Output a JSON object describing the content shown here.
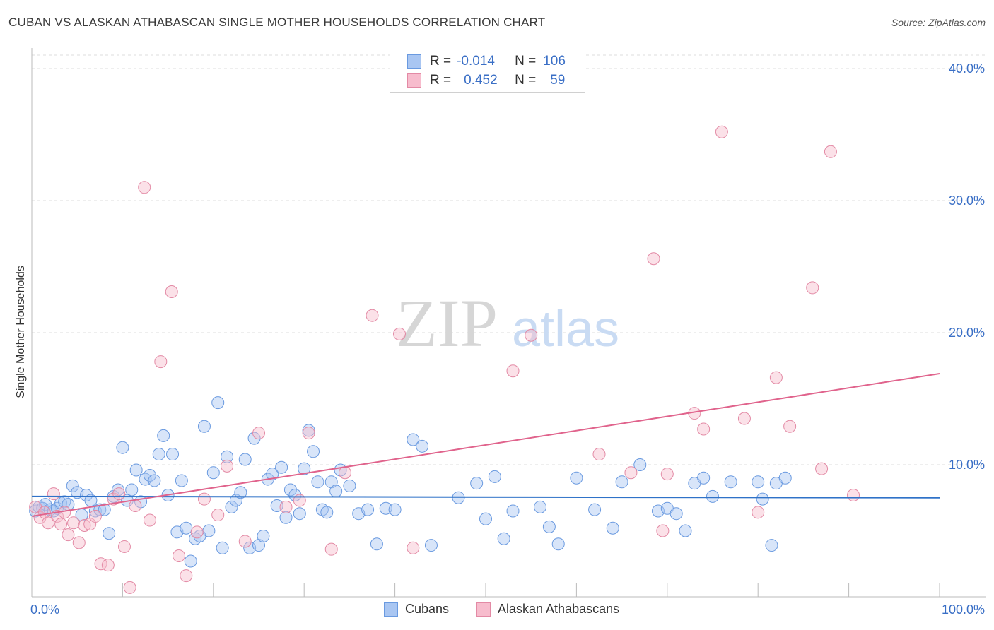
{
  "title": "CUBAN VS ALASKAN ATHABASCAN SINGLE MOTHER HOUSEHOLDS CORRELATION CHART",
  "source": "Source: ZipAtlas.com",
  "watermark": {
    "zip": "ZIP",
    "atlas": "atlas"
  },
  "legend": {
    "rows": [
      {
        "r_label": "R =",
        "r_value": "-0.014",
        "n_label": "N =",
        "n_value": "106",
        "color": "#a9c6f2",
        "border": "#6a9ae0"
      },
      {
        "r_label": "R =",
        "r_value": "0.452",
        "n_label": "N =",
        "n_value": "59",
        "color": "#f7bccd",
        "border": "#e38aa5"
      }
    ]
  },
  "bottom_legend": [
    "Cubans",
    "Alaskan Athabascans"
  ],
  "chart_data": {
    "type": "scatter",
    "xlabel": "",
    "ylabel": "Single Mother Households",
    "xlim": [
      0,
      100
    ],
    "ylim": [
      0,
      40
    ],
    "x_tick_labels": {
      "min": "0.0%",
      "max": "100.0%"
    },
    "y_ticks": [
      10,
      20,
      30,
      40
    ],
    "y_tick_labels": [
      "10.0%",
      "20.0%",
      "30.0%",
      "40.0%"
    ],
    "grid": "horizontal dashed",
    "legend_position": "top-center",
    "colors": {
      "Cubans": "#6a9ae0",
      "Alaskan Athabascans": "#e38aa5",
      "cubans_line": "#2f72c8",
      "alaskan_line": "#e0638c",
      "tick_text": "#3a6fc6"
    },
    "series": [
      {
        "name": "Cubans",
        "trend": {
          "x": [
            0,
            100
          ],
          "y": [
            7.6,
            7.5
          ]
        },
        "x": [
          0.4,
          0.8,
          1.2,
          1.5,
          2.0,
          2.4,
          2.8,
          3.2,
          3.6,
          4.0,
          4.5,
          5.0,
          5.5,
          6.0,
          6.5,
          7.0,
          7.5,
          8.0,
          8.5,
          9.0,
          9.5,
          10.0,
          10.5,
          11.0,
          11.5,
          12.0,
          12.5,
          13.0,
          13.5,
          14.0,
          14.5,
          15.0,
          15.5,
          16.0,
          16.5,
          17.0,
          17.5,
          18.0,
          18.5,
          19.0,
          19.5,
          20.0,
          20.5,
          21.0,
          21.5,
          22.0,
          22.5,
          23.0,
          23.5,
          24.0,
          24.5,
          25.0,
          25.5,
          26.0,
          26.5,
          27.0,
          27.5,
          28.0,
          28.5,
          29.0,
          29.5,
          30.0,
          30.5,
          31.0,
          31.5,
          32.0,
          32.5,
          33.0,
          33.5,
          34.0,
          35.0,
          36.0,
          37.0,
          38.0,
          39.0,
          40.0,
          42.0,
          43.0,
          44.0,
          47.0,
          49.0,
          50.0,
          51.0,
          52.0,
          53.0,
          56.0,
          57.0,
          58.0,
          60.0,
          62.0,
          64.0,
          65.0,
          67.0,
          69.0,
          70.0,
          71.0,
          72.0,
          73.0,
          74.0,
          75.0,
          77.0,
          80.0,
          80.5,
          81.5,
          82.0,
          83.0
        ],
        "y": [
          6.5,
          6.8,
          6.7,
          7.0,
          6.6,
          6.5,
          6.7,
          7.1,
          7.2,
          7.0,
          8.4,
          7.9,
          6.2,
          7.7,
          7.3,
          6.5,
          6.6,
          6.6,
          4.8,
          7.6,
          8.1,
          11.3,
          7.3,
          8.1,
          9.6,
          7.2,
          8.9,
          9.2,
          8.8,
          10.8,
          12.2,
          7.7,
          10.8,
          4.9,
          8.8,
          5.2,
          2.7,
          4.4,
          4.6,
          12.9,
          5.0,
          9.4,
          14.7,
          3.7,
          10.6,
          6.8,
          7.3,
          7.9,
          10.4,
          3.7,
          12.0,
          3.9,
          4.6,
          8.9,
          9.3,
          6.9,
          9.8,
          6.0,
          8.1,
          7.7,
          6.3,
          9.7,
          12.6,
          11.0,
          8.7,
          6.6,
          6.4,
          8.7,
          8.0,
          9.6,
          8.4,
          6.3,
          6.6,
          4.0,
          6.7,
          6.6,
          11.9,
          11.4,
          3.9,
          7.5,
          8.6,
          5.9,
          9.1,
          4.4,
          6.5,
          6.8,
          5.3,
          4.0,
          9.0,
          6.6,
          5.2,
          8.7,
          10.0,
          6.5,
          6.7,
          6.3,
          5.0,
          8.6,
          9.0,
          7.6,
          8.7,
          8.7,
          7.4,
          3.9,
          8.6,
          9.0
        ]
      },
      {
        "name": "Alaskan Athabascans",
        "trend": {
          "x": [
            0,
            100
          ],
          "y": [
            6.1,
            16.9
          ]
        },
        "x": [
          0.4,
          0.9,
          1.4,
          1.8,
          2.4,
          2.8,
          3.2,
          3.6,
          4.0,
          4.6,
          5.2,
          5.8,
          6.4,
          7.0,
          7.6,
          8.4,
          9.0,
          9.6,
          10.2,
          10.8,
          11.4,
          12.4,
          13.0,
          14.2,
          15.4,
          16.2,
          17.0,
          18.2,
          19.0,
          20.5,
          21.5,
          23.5,
          25.0,
          28.0,
          29.5,
          30.5,
          33.0,
          34.5,
          37.5,
          40.5,
          42.0,
          53.0,
          55.0,
          62.5,
          66.0,
          68.5,
          69.5,
          70.0,
          73.0,
          74.0,
          76.0,
          78.5,
          80.0,
          82.0,
          83.5,
          86.0,
          87.0,
          88.0,
          90.5
        ],
        "y": [
          6.8,
          6.0,
          6.4,
          5.6,
          7.8,
          6.1,
          5.5,
          6.4,
          4.7,
          5.6,
          4.1,
          5.4,
          5.5,
          6.1,
          2.5,
          2.4,
          7.4,
          7.8,
          3.8,
          0.7,
          6.9,
          31.0,
          5.8,
          17.8,
          23.1,
          3.1,
          1.6,
          4.9,
          7.4,
          6.2,
          9.9,
          4.2,
          12.4,
          6.8,
          7.3,
          12.4,
          3.6,
          9.4,
          21.3,
          19.9,
          3.7,
          17.1,
          19.8,
          10.8,
          9.4,
          25.6,
          5.0,
          9.3,
          13.9,
          12.7,
          35.2,
          13.5,
          6.4,
          16.6,
          12.9,
          23.4,
          9.7,
          33.7,
          7.7
        ]
      }
    ]
  }
}
